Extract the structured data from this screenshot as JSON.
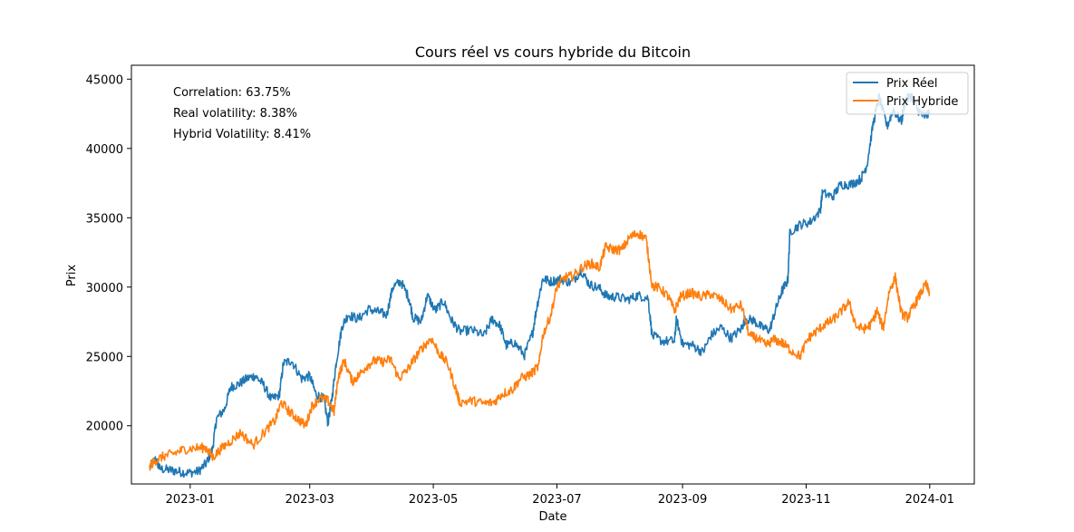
{
  "chart_data": {
    "type": "line",
    "title": "Cours réel vs cours hybride du Bitcoin",
    "xlabel": "Date",
    "ylabel": "Prix",
    "xlim": [
      "2022-12-03",
      "2024-01-23"
    ],
    "ylim": [
      15800,
      46000
    ],
    "x_ticks": [
      "2023-01-01",
      "2023-03-01",
      "2023-05-01",
      "2023-07-01",
      "2023-09-01",
      "2023-11-01",
      "2024-01-01"
    ],
    "x_tick_labels": [
      "2023-01",
      "2023-03",
      "2023-05",
      "2023-07",
      "2023-09",
      "2023-11",
      "2024-01"
    ],
    "y_ticks": [
      20000,
      25000,
      30000,
      35000,
      40000,
      45000
    ],
    "y_tick_labels": [
      "20000",
      "25000",
      "30000",
      "35000",
      "40000",
      "45000"
    ],
    "grid": false,
    "legend_position": "top-right",
    "annotations": [
      "Correlation: 63.75%",
      "Real volatility: 8.38%",
      "Hybrid Volatility: 8.41%"
    ],
    "series": [
      {
        "name": "Prix Réel",
        "color": "#1f77b4",
        "points": [
          [
            "2022-12-12",
            17000
          ],
          [
            "2022-12-15",
            17600
          ],
          [
            "2022-12-17",
            16900
          ],
          [
            "2022-12-22",
            16800
          ],
          [
            "2022-12-26",
            16700
          ],
          [
            "2022-12-31",
            16600
          ],
          [
            "2023-01-05",
            16700
          ],
          [
            "2023-01-09",
            17300
          ],
          [
            "2023-01-12",
            18300
          ],
          [
            "2023-01-14",
            20500
          ],
          [
            "2023-01-18",
            21200
          ],
          [
            "2023-01-21",
            22800
          ],
          [
            "2023-01-25",
            23000
          ],
          [
            "2023-01-29",
            23400
          ],
          [
            "2023-02-02",
            23600
          ],
          [
            "2023-02-06",
            23000
          ],
          [
            "2023-02-10",
            21900
          ],
          [
            "2023-02-14",
            22200
          ],
          [
            "2023-02-16",
            24500
          ],
          [
            "2023-02-20",
            24700
          ],
          [
            "2023-02-25",
            23400
          ],
          [
            "2023-03-01",
            23600
          ],
          [
            "2023-03-04",
            22300
          ],
          [
            "2023-03-08",
            21900
          ],
          [
            "2023-03-10",
            20200
          ],
          [
            "2023-03-12",
            22000
          ],
          [
            "2023-03-14",
            24500
          ],
          [
            "2023-03-17",
            27200
          ],
          [
            "2023-03-20",
            28000
          ],
          [
            "2023-03-25",
            27700
          ],
          [
            "2023-03-30",
            28400
          ],
          [
            "2023-04-04",
            28200
          ],
          [
            "2023-04-08",
            28000
          ],
          [
            "2023-04-11",
            30000
          ],
          [
            "2023-04-15",
            30400
          ],
          [
            "2023-04-19",
            29200
          ],
          [
            "2023-04-21",
            27800
          ],
          [
            "2023-04-25",
            27500
          ],
          [
            "2023-04-28",
            29400
          ],
          [
            "2023-05-02",
            28300
          ],
          [
            "2023-05-06",
            29000
          ],
          [
            "2023-05-10",
            27600
          ],
          [
            "2023-05-14",
            26800
          ],
          [
            "2023-05-20",
            26900
          ],
          [
            "2023-05-26",
            26500
          ],
          [
            "2023-05-30",
            27700
          ],
          [
            "2023-06-03",
            27200
          ],
          [
            "2023-06-06",
            25800
          ],
          [
            "2023-06-10",
            26000
          ],
          [
            "2023-06-15",
            25100
          ],
          [
            "2023-06-19",
            26700
          ],
          [
            "2023-06-21",
            28500
          ],
          [
            "2023-06-24",
            30600
          ],
          [
            "2023-06-28",
            30400
          ],
          [
            "2023-07-03",
            30600
          ],
          [
            "2023-07-08",
            30300
          ],
          [
            "2023-07-13",
            31200
          ],
          [
            "2023-07-17",
            30200
          ],
          [
            "2023-07-22",
            29900
          ],
          [
            "2023-07-26",
            29300
          ],
          [
            "2023-07-30",
            29300
          ],
          [
            "2023-08-05",
            29100
          ],
          [
            "2023-08-10",
            29400
          ],
          [
            "2023-08-15",
            29200
          ],
          [
            "2023-08-17",
            26500
          ],
          [
            "2023-08-22",
            26100
          ],
          [
            "2023-08-28",
            26100
          ],
          [
            "2023-08-29",
            27700
          ],
          [
            "2023-09-01",
            25900
          ],
          [
            "2023-09-06",
            25800
          ],
          [
            "2023-09-11",
            25300
          ],
          [
            "2023-09-15",
            26500
          ],
          [
            "2023-09-20",
            27100
          ],
          [
            "2023-09-25",
            26300
          ],
          [
            "2023-09-30",
            27000
          ],
          [
            "2023-10-02",
            27700
          ],
          [
            "2023-10-06",
            27600
          ],
          [
            "2023-10-10",
            27100
          ],
          [
            "2023-10-14",
            26900
          ],
          [
            "2023-10-17",
            28400
          ],
          [
            "2023-10-20",
            29700
          ],
          [
            "2023-10-23",
            30500
          ],
          [
            "2023-10-24",
            34000
          ],
          [
            "2023-10-29",
            34500
          ],
          [
            "2023-11-03",
            34700
          ],
          [
            "2023-11-08",
            35500
          ],
          [
            "2023-11-09",
            36800
          ],
          [
            "2023-11-14",
            36500
          ],
          [
            "2023-11-18",
            37400
          ],
          [
            "2023-11-23",
            37400
          ],
          [
            "2023-11-28",
            37800
          ],
          [
            "2023-12-01",
            38800
          ],
          [
            "2023-12-04",
            41700
          ],
          [
            "2023-12-07",
            43700
          ],
          [
            "2023-12-11",
            41600
          ],
          [
            "2023-12-14",
            42800
          ],
          [
            "2023-12-18",
            41900
          ],
          [
            "2023-12-20",
            43500
          ],
          [
            "2023-12-23",
            43800
          ],
          [
            "2023-12-26",
            42800
          ],
          [
            "2023-12-29",
            42300
          ],
          [
            "2024-01-01",
            42500
          ]
        ]
      },
      {
        "name": "Prix Hybride",
        "color": "#ff7f0e",
        "points": [
          [
            "2022-12-12",
            17100
          ],
          [
            "2022-12-15",
            17500
          ],
          [
            "2022-12-19",
            17800
          ],
          [
            "2022-12-24",
            18000
          ],
          [
            "2022-12-29",
            18300
          ],
          [
            "2023-01-04",
            18400
          ],
          [
            "2023-01-09",
            18400
          ],
          [
            "2023-01-12",
            17700
          ],
          [
            "2023-01-16",
            18300
          ],
          [
            "2023-01-21",
            18900
          ],
          [
            "2023-01-26",
            19500
          ],
          [
            "2023-02-01",
            18600
          ],
          [
            "2023-02-07",
            19600
          ],
          [
            "2023-02-12",
            20400
          ],
          [
            "2023-02-15",
            21700
          ],
          [
            "2023-02-19",
            21000
          ],
          [
            "2023-02-23",
            20500
          ],
          [
            "2023-02-27",
            20000
          ],
          [
            "2023-03-02",
            21400
          ],
          [
            "2023-03-06",
            22000
          ],
          [
            "2023-03-10",
            21800
          ],
          [
            "2023-03-13",
            21000
          ],
          [
            "2023-03-15",
            23500
          ],
          [
            "2023-03-18",
            24700
          ],
          [
            "2023-03-22",
            23200
          ],
          [
            "2023-03-25",
            23600
          ],
          [
            "2023-03-29",
            24300
          ],
          [
            "2023-04-02",
            24700
          ],
          [
            "2023-04-06",
            24600
          ],
          [
            "2023-04-10",
            24800
          ],
          [
            "2023-04-14",
            23400
          ],
          [
            "2023-04-18",
            24000
          ],
          [
            "2023-04-22",
            24900
          ],
          [
            "2023-04-26",
            25700
          ],
          [
            "2023-04-30",
            26300
          ],
          [
            "2023-05-04",
            25200
          ],
          [
            "2023-05-08",
            24500
          ],
          [
            "2023-05-12",
            22700
          ],
          [
            "2023-05-14",
            21700
          ],
          [
            "2023-05-20",
            21800
          ],
          [
            "2023-05-26",
            21600
          ],
          [
            "2023-05-31",
            21700
          ],
          [
            "2023-06-04",
            22300
          ],
          [
            "2023-06-09",
            22600
          ],
          [
            "2023-06-13",
            23400
          ],
          [
            "2023-06-18",
            23700
          ],
          [
            "2023-06-22",
            24300
          ],
          [
            "2023-06-24",
            26500
          ],
          [
            "2023-06-28",
            28000
          ],
          [
            "2023-07-01",
            30000
          ],
          [
            "2023-07-05",
            30700
          ],
          [
            "2023-07-09",
            30800
          ],
          [
            "2023-07-14",
            31500
          ],
          [
            "2023-07-18",
            31700
          ],
          [
            "2023-07-22",
            31400
          ],
          [
            "2023-07-25",
            32900
          ],
          [
            "2023-07-29",
            32700
          ],
          [
            "2023-08-02",
            32700
          ],
          [
            "2023-08-06",
            33600
          ],
          [
            "2023-08-10",
            33900
          ],
          [
            "2023-08-14",
            33500
          ],
          [
            "2023-08-17",
            30100
          ],
          [
            "2023-08-21",
            29900
          ],
          [
            "2023-08-25",
            29300
          ],
          [
            "2023-08-28",
            28300
          ],
          [
            "2023-08-31",
            29300
          ],
          [
            "2023-09-05",
            29600
          ],
          [
            "2023-09-10",
            29300
          ],
          [
            "2023-09-15",
            29500
          ],
          [
            "2023-09-20",
            29100
          ],
          [
            "2023-09-25",
            28400
          ],
          [
            "2023-09-30",
            28700
          ],
          [
            "2023-10-04",
            26500
          ],
          [
            "2023-10-08",
            26300
          ],
          [
            "2023-10-12",
            25800
          ],
          [
            "2023-10-16",
            26200
          ],
          [
            "2023-10-20",
            26000
          ],
          [
            "2023-10-24",
            25500
          ],
          [
            "2023-10-29",
            25000
          ],
          [
            "2023-11-02",
            26300
          ],
          [
            "2023-11-06",
            26800
          ],
          [
            "2023-11-10",
            27300
          ],
          [
            "2023-11-14",
            27600
          ],
          [
            "2023-11-18",
            28200
          ],
          [
            "2023-11-22",
            28900
          ],
          [
            "2023-11-26",
            27100
          ],
          [
            "2023-11-30",
            27000
          ],
          [
            "2023-12-03",
            27300
          ],
          [
            "2023-12-06",
            28300
          ],
          [
            "2023-12-09",
            27000
          ],
          [
            "2023-12-12",
            29700
          ],
          [
            "2023-12-15",
            30700
          ],
          [
            "2023-12-18",
            28100
          ],
          [
            "2023-12-21",
            27800
          ],
          [
            "2023-12-24",
            28600
          ],
          [
            "2023-12-27",
            29400
          ],
          [
            "2023-12-30",
            30200
          ],
          [
            "2024-01-01",
            29600
          ]
        ]
      }
    ]
  }
}
